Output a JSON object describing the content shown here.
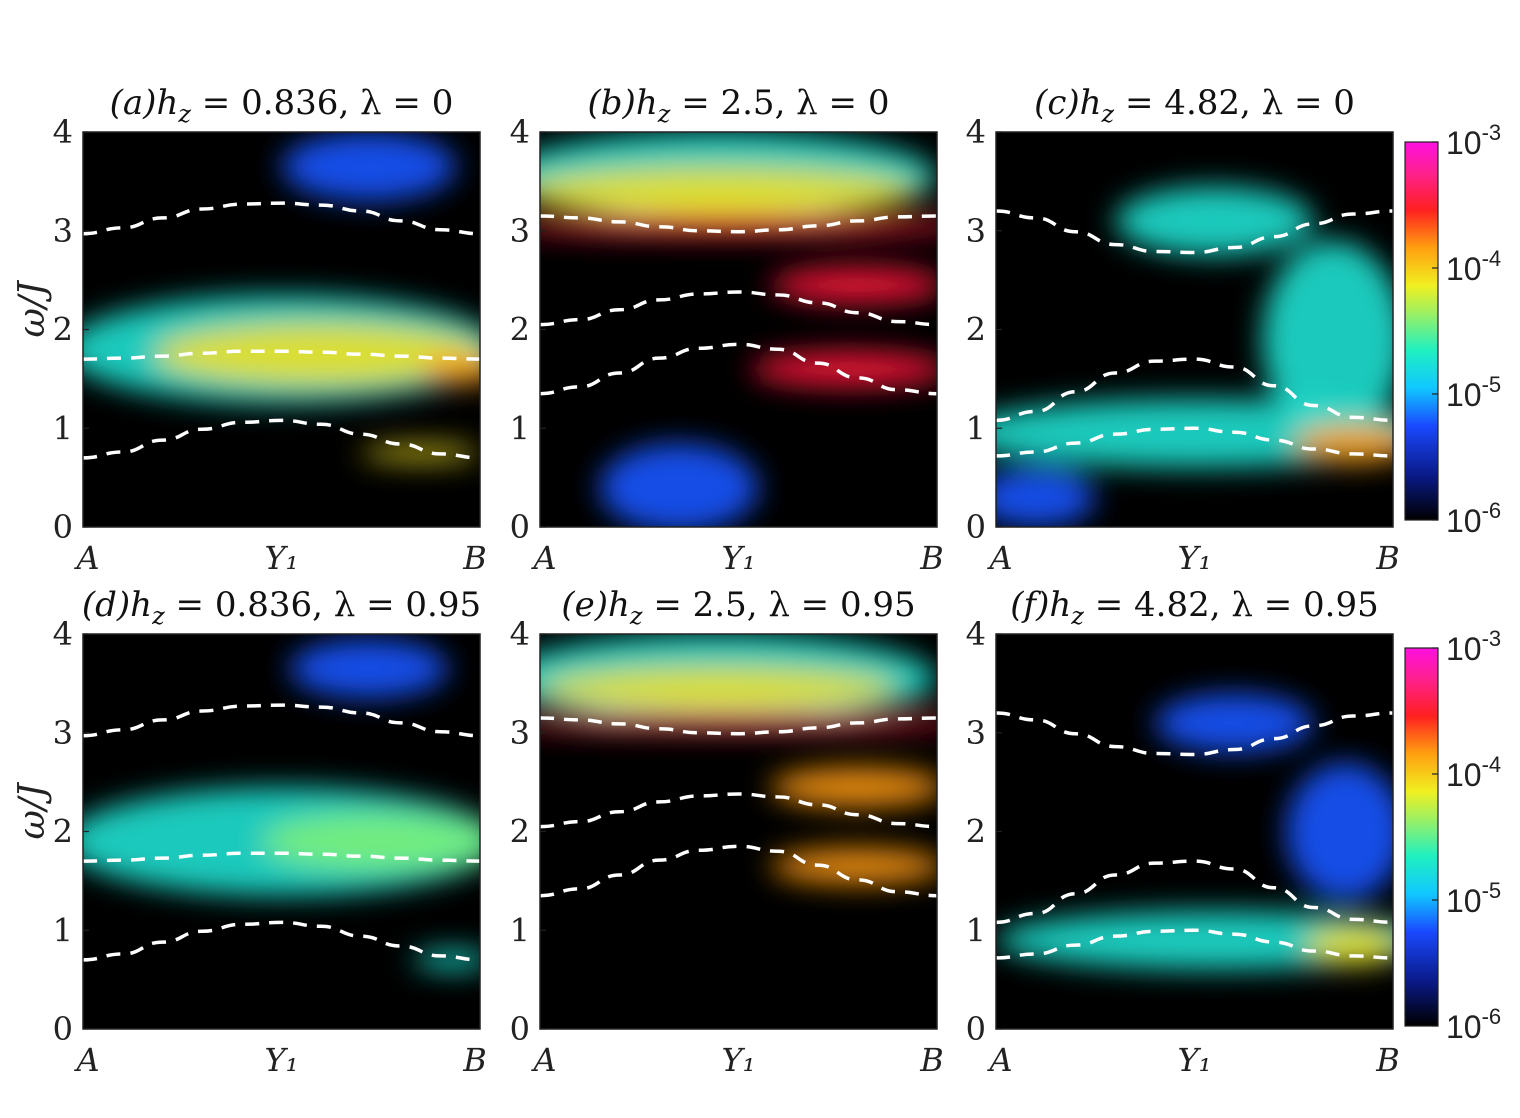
{
  "chart_data": [
    {
      "type": "heatmap",
      "title": "(a)h_z = 0.836, λ = 0",
      "ylabel": "ω/J",
      "xticks": [
        "A",
        "Y₁",
        "B"
      ],
      "ylim": [
        0,
        4
      ],
      "yticks": [
        0,
        1,
        2,
        3,
        4
      ],
      "dashed_curves": [
        {
          "x": [
            0,
            0.1,
            0.2,
            0.3,
            0.4,
            0.5,
            0.6,
            0.7,
            0.8,
            0.9,
            1.0
          ],
          "y": [
            2.97,
            3.03,
            3.13,
            3.22,
            3.27,
            3.28,
            3.26,
            3.2,
            3.1,
            3.01,
            2.97
          ]
        },
        {
          "x": [
            0,
            0.1,
            0.2,
            0.3,
            0.4,
            0.5,
            0.6,
            0.7,
            0.8,
            0.9,
            1.0
          ],
          "y": [
            1.7,
            1.71,
            1.73,
            1.76,
            1.78,
            1.78,
            1.77,
            1.75,
            1.73,
            1.71,
            1.7
          ]
        },
        {
          "x": [
            0,
            0.1,
            0.2,
            0.3,
            0.4,
            0.5,
            0.6,
            0.7,
            0.8,
            0.9,
            1.0
          ],
          "y": [
            0.7,
            0.76,
            0.88,
            0.99,
            1.06,
            1.08,
            1.04,
            0.94,
            0.84,
            0.74,
            0.7
          ]
        }
      ],
      "intensity_regions": [
        {
          "cx": 0.72,
          "cy": 3.65,
          "rx": 0.22,
          "ry": 0.35,
          "level": "blue"
        },
        {
          "cx": 0.5,
          "cy": 1.8,
          "rx": 0.55,
          "ry": 0.55,
          "level": "cyan"
        },
        {
          "cx": 0.6,
          "cy": 1.75,
          "rx": 0.42,
          "ry": 0.32,
          "level": "yellow"
        },
        {
          "cx": 0.95,
          "cy": 1.6,
          "rx": 0.1,
          "ry": 0.15,
          "level": "orange"
        },
        {
          "cx": 0.85,
          "cy": 0.75,
          "rx": 0.15,
          "ry": 0.08,
          "level": "yellow"
        }
      ]
    },
    {
      "type": "heatmap",
      "title": "(b)h_z = 2.5, λ = 0",
      "xticks": [
        "A",
        "Y₁",
        "B"
      ],
      "ylim": [
        0,
        4
      ],
      "yticks": [
        0,
        1,
        2,
        3,
        4
      ],
      "dashed_curves": [
        {
          "x": [
            0,
            0.1,
            0.2,
            0.3,
            0.4,
            0.5,
            0.6,
            0.7,
            0.8,
            0.9,
            1.0
          ],
          "y": [
            3.15,
            3.13,
            3.09,
            3.04,
            3.0,
            2.99,
            3.01,
            3.05,
            3.1,
            3.14,
            3.15
          ]
        },
        {
          "x": [
            0,
            0.1,
            0.2,
            0.3,
            0.4,
            0.5,
            0.6,
            0.7,
            0.8,
            0.9,
            1.0
          ],
          "y": [
            2.05,
            2.1,
            2.2,
            2.3,
            2.36,
            2.38,
            2.35,
            2.27,
            2.17,
            2.08,
            2.05
          ]
        },
        {
          "x": [
            0,
            0.1,
            0.2,
            0.3,
            0.4,
            0.5,
            0.6,
            0.7,
            0.8,
            0.9,
            1.0
          ],
          "y": [
            1.35,
            1.42,
            1.56,
            1.71,
            1.81,
            1.85,
            1.8,
            1.66,
            1.51,
            1.39,
            1.35
          ]
        }
      ],
      "intensity_regions": [
        {
          "cx": 0.45,
          "cy": 3.55,
          "rx": 0.55,
          "ry": 0.45,
          "level": "cyan"
        },
        {
          "cx": 0.45,
          "cy": 3.4,
          "rx": 0.5,
          "ry": 0.25,
          "level": "yellow"
        },
        {
          "cx": 0.5,
          "cy": 3.05,
          "rx": 0.6,
          "ry": 0.1,
          "level": "red"
        },
        {
          "cx": 0.8,
          "cy": 2.45,
          "rx": 0.22,
          "ry": 0.18,
          "level": "red"
        },
        {
          "cx": 0.78,
          "cy": 1.6,
          "rx": 0.25,
          "ry": 0.18,
          "level": "red"
        },
        {
          "cx": 0.35,
          "cy": 0.4,
          "rx": 0.2,
          "ry": 0.45,
          "level": "blue"
        }
      ]
    },
    {
      "type": "heatmap",
      "title": "(c)h_z = 4.82, λ = 0",
      "xticks": [
        "A",
        "Y₁",
        "B"
      ],
      "ylim": [
        0,
        4
      ],
      "yticks": [
        0,
        1,
        2,
        3,
        4
      ],
      "dashed_curves": [
        {
          "x": [
            0,
            0.1,
            0.2,
            0.3,
            0.4,
            0.5,
            0.6,
            0.7,
            0.8,
            0.9,
            1.0
          ],
          "y": [
            3.2,
            3.13,
            2.99,
            2.86,
            2.79,
            2.78,
            2.83,
            2.94,
            3.07,
            3.17,
            3.2
          ]
        },
        {
          "x": [
            0,
            0.1,
            0.2,
            0.3,
            0.4,
            0.5,
            0.6,
            0.7,
            0.8,
            0.9,
            1.0
          ],
          "y": [
            1.08,
            1.17,
            1.37,
            1.56,
            1.68,
            1.7,
            1.62,
            1.43,
            1.23,
            1.11,
            1.08
          ]
        },
        {
          "x": [
            0,
            0.1,
            0.2,
            0.3,
            0.4,
            0.5,
            0.6,
            0.7,
            0.8,
            0.9,
            1.0
          ],
          "y": [
            0.72,
            0.76,
            0.85,
            0.94,
            0.99,
            1.0,
            0.96,
            0.88,
            0.79,
            0.74,
            0.72
          ]
        }
      ],
      "intensity_regions": [
        {
          "cx": 0.55,
          "cy": 3.1,
          "rx": 0.25,
          "ry": 0.35,
          "level": "cyan"
        },
        {
          "cx": 0.85,
          "cy": 1.9,
          "rx": 0.18,
          "ry": 1.0,
          "level": "cyan"
        },
        {
          "cx": 0.5,
          "cy": 0.95,
          "rx": 0.6,
          "ry": 0.35,
          "level": "cyan"
        },
        {
          "cx": 0.9,
          "cy": 0.85,
          "rx": 0.15,
          "ry": 0.2,
          "level": "orange"
        },
        {
          "cx": 0.1,
          "cy": 0.3,
          "rx": 0.15,
          "ry": 0.3,
          "level": "blue"
        }
      ]
    },
    {
      "type": "heatmap",
      "title": "(d)h_z = 0.836, λ = 0.95",
      "ylabel": "ω/J",
      "xticks": [
        "A",
        "Y₁",
        "B"
      ],
      "ylim": [
        0,
        4
      ],
      "yticks": [
        0,
        1,
        2,
        3,
        4
      ],
      "dashed_curves": [
        {
          "x": [
            0,
            0.1,
            0.2,
            0.3,
            0.4,
            0.5,
            0.6,
            0.7,
            0.8,
            0.9,
            1.0
          ],
          "y": [
            2.97,
            3.03,
            3.13,
            3.22,
            3.27,
            3.28,
            3.26,
            3.2,
            3.1,
            3.01,
            2.97
          ]
        },
        {
          "x": [
            0,
            0.1,
            0.2,
            0.3,
            0.4,
            0.5,
            0.6,
            0.7,
            0.8,
            0.9,
            1.0
          ],
          "y": [
            1.7,
            1.71,
            1.73,
            1.76,
            1.78,
            1.78,
            1.77,
            1.75,
            1.73,
            1.71,
            1.7
          ]
        },
        {
          "x": [
            0,
            0.1,
            0.2,
            0.3,
            0.4,
            0.5,
            0.6,
            0.7,
            0.8,
            0.9,
            1.0
          ],
          "y": [
            0.7,
            0.76,
            0.88,
            0.99,
            1.06,
            1.08,
            1.04,
            0.94,
            0.84,
            0.74,
            0.7
          ]
        }
      ],
      "intensity_regions": [
        {
          "cx": 0.72,
          "cy": 3.65,
          "rx": 0.2,
          "ry": 0.3,
          "level": "blue"
        },
        {
          "cx": 0.5,
          "cy": 1.9,
          "rx": 0.55,
          "ry": 0.55,
          "level": "cyan"
        },
        {
          "cx": 0.75,
          "cy": 1.9,
          "rx": 0.3,
          "ry": 0.3,
          "level": "green"
        },
        {
          "cx": 0.93,
          "cy": 0.7,
          "rx": 0.1,
          "ry": 0.1,
          "level": "cyan"
        }
      ]
    },
    {
      "type": "heatmap",
      "title": "(e)h_z = 2.5, λ = 0.95",
      "xticks": [
        "A",
        "Y₁",
        "B"
      ],
      "ylim": [
        0,
        4
      ],
      "yticks": [
        0,
        1,
        2,
        3,
        4
      ],
      "dashed_curves": [
        {
          "x": [
            0,
            0.1,
            0.2,
            0.3,
            0.4,
            0.5,
            0.6,
            0.7,
            0.8,
            0.9,
            1.0
          ],
          "y": [
            3.15,
            3.13,
            3.09,
            3.04,
            3.0,
            2.99,
            3.01,
            3.05,
            3.1,
            3.14,
            3.15
          ]
        },
        {
          "x": [
            0,
            0.1,
            0.2,
            0.3,
            0.4,
            0.5,
            0.6,
            0.7,
            0.8,
            0.9,
            1.0
          ],
          "y": [
            2.05,
            2.1,
            2.2,
            2.3,
            2.36,
            2.38,
            2.35,
            2.27,
            2.17,
            2.08,
            2.05
          ]
        },
        {
          "x": [
            0,
            0.1,
            0.2,
            0.3,
            0.4,
            0.5,
            0.6,
            0.7,
            0.8,
            0.9,
            1.0
          ],
          "y": [
            1.35,
            1.42,
            1.56,
            1.71,
            1.81,
            1.85,
            1.8,
            1.66,
            1.51,
            1.39,
            1.35
          ]
        }
      ],
      "intensity_regions": [
        {
          "cx": 0.45,
          "cy": 3.55,
          "rx": 0.55,
          "ry": 0.45,
          "level": "cyan"
        },
        {
          "cx": 0.45,
          "cy": 3.45,
          "rx": 0.45,
          "ry": 0.22,
          "level": "yellow"
        },
        {
          "cx": 0.5,
          "cy": 3.1,
          "rx": 0.6,
          "ry": 0.08,
          "level": "red"
        },
        {
          "cx": 0.8,
          "cy": 2.45,
          "rx": 0.22,
          "ry": 0.2,
          "level": "orange"
        },
        {
          "cx": 0.8,
          "cy": 1.65,
          "rx": 0.22,
          "ry": 0.18,
          "level": "orange"
        }
      ]
    },
    {
      "type": "heatmap",
      "title": "(f)h_z = 4.82, λ = 0.95",
      "xticks": [
        "A",
        "Y₁",
        "B"
      ],
      "ylim": [
        0,
        4
      ],
      "yticks": [
        0,
        1,
        2,
        3,
        4
      ],
      "dashed_curves": [
        {
          "x": [
            0,
            0.1,
            0.2,
            0.3,
            0.4,
            0.5,
            0.6,
            0.7,
            0.8,
            0.9,
            1.0
          ],
          "y": [
            3.2,
            3.13,
            2.99,
            2.86,
            2.79,
            2.78,
            2.83,
            2.94,
            3.07,
            3.17,
            3.2
          ]
        },
        {
          "x": [
            0,
            0.1,
            0.2,
            0.3,
            0.4,
            0.5,
            0.6,
            0.7,
            0.8,
            0.9,
            1.0
          ],
          "y": [
            1.08,
            1.17,
            1.37,
            1.56,
            1.68,
            1.7,
            1.62,
            1.43,
            1.23,
            1.11,
            1.08
          ]
        },
        {
          "x": [
            0,
            0.1,
            0.2,
            0.3,
            0.4,
            0.5,
            0.6,
            0.7,
            0.8,
            0.9,
            1.0
          ],
          "y": [
            0.72,
            0.76,
            0.85,
            0.94,
            0.99,
            1.0,
            0.96,
            0.88,
            0.79,
            0.74,
            0.72
          ]
        }
      ],
      "intensity_regions": [
        {
          "cx": 0.6,
          "cy": 3.1,
          "rx": 0.2,
          "ry": 0.3,
          "level": "blue"
        },
        {
          "cx": 0.88,
          "cy": 2.0,
          "rx": 0.15,
          "ry": 0.7,
          "level": "blue"
        },
        {
          "cx": 0.55,
          "cy": 0.9,
          "rx": 0.55,
          "ry": 0.3,
          "level": "cyan"
        },
        {
          "cx": 0.9,
          "cy": 0.85,
          "rx": 0.12,
          "ry": 0.2,
          "level": "yellow"
        }
      ]
    }
  ],
  "colorbars": [
    {
      "ticks": [
        "10^-3",
        "10^-4",
        "10^-5",
        "10^-6"
      ],
      "log_range": [
        -6,
        -3
      ]
    },
    {
      "ticks": [
        "10^-3",
        "10^-4",
        "10^-5",
        "10^-6"
      ],
      "log_range": [
        -6,
        -3
      ]
    }
  ],
  "colors": {
    "blue": "#1a55ff",
    "cyan": "#20e0d0",
    "green": "#7cf07a",
    "yellow": "#f0e020",
    "orange": "#ff9a10",
    "red": "#ff1a3a",
    "background": "#000000",
    "dashed": "#ffffff"
  }
}
